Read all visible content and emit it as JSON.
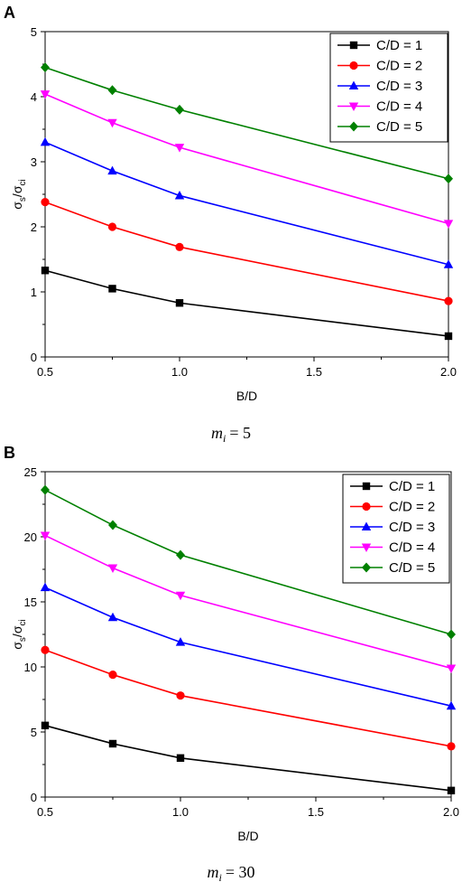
{
  "chart_data": [
    {
      "type": "line",
      "panel_label": "A",
      "caption": {
        "var": "m",
        "sub": "i",
        "value": "= 5"
      },
      "xlabel": "B/D",
      "ylabel": {
        "main": "σ",
        "sub1": "s",
        "slash": "/σ",
        "sub2": "ci"
      },
      "xlim": [
        0.5,
        2.0
      ],
      "ylim": [
        0,
        5
      ],
      "xticks": [
        "0.5",
        "1.0",
        "1.5",
        "2.0"
      ],
      "xtick_values": [
        0.5,
        1.0,
        1.5,
        2.0
      ],
      "yticks": [
        "0",
        "1",
        "2",
        "3",
        "4",
        "5"
      ],
      "ytick_values": [
        0,
        1,
        2,
        3,
        4,
        5
      ],
      "legend_position": "top-right",
      "grid": false,
      "x": [
        0.5,
        0.75,
        1.0,
        2.0
      ],
      "series": [
        {
          "name": "C/D = 1",
          "color": "#000000",
          "marker": "square",
          "values": [
            1.33,
            1.05,
            0.83,
            0.32
          ]
        },
        {
          "name": "C/D = 2",
          "color": "#ff0000",
          "marker": "circle",
          "values": [
            2.38,
            2.0,
            1.69,
            0.86
          ]
        },
        {
          "name": "C/D = 3",
          "color": "#0000ff",
          "marker": "triangle-up",
          "values": [
            3.3,
            2.86,
            2.48,
            1.42
          ]
        },
        {
          "name": "C/D = 4",
          "color": "#ff00ff",
          "marker": "triangle-down",
          "values": [
            4.04,
            3.6,
            3.22,
            2.05
          ]
        },
        {
          "name": "C/D = 5",
          "color": "#008000",
          "marker": "diamond",
          "values": [
            4.45,
            4.1,
            3.8,
            2.74
          ]
        }
      ]
    },
    {
      "type": "line",
      "panel_label": "B",
      "caption": {
        "var": "m",
        "sub": "i",
        "value": "= 30"
      },
      "xlabel": "B/D",
      "ylabel": {
        "main": "σ",
        "sub1": "s",
        "slash": "/σ",
        "sub2": "ci"
      },
      "xlim": [
        0.5,
        2.0
      ],
      "ylim": [
        0,
        25
      ],
      "xticks": [
        "0.5",
        "1.0",
        "1.5",
        "2.0"
      ],
      "xtick_values": [
        0.5,
        1.0,
        1.5,
        2.0
      ],
      "yticks": [
        "0",
        "5",
        "10",
        "15",
        "20",
        "25"
      ],
      "ytick_values": [
        0,
        5,
        10,
        15,
        20,
        25
      ],
      "legend_position": "top-right",
      "grid": false,
      "x": [
        0.5,
        0.75,
        1.0,
        2.0
      ],
      "series": [
        {
          "name": "C/D = 1",
          "color": "#000000",
          "marker": "square",
          "values": [
            5.5,
            4.1,
            3.0,
            0.5
          ]
        },
        {
          "name": "C/D = 2",
          "color": "#ff0000",
          "marker": "circle",
          "values": [
            11.3,
            9.4,
            7.8,
            3.9
          ]
        },
        {
          "name": "C/D = 3",
          "color": "#0000ff",
          "marker": "triangle-up",
          "values": [
            16.1,
            13.8,
            11.9,
            7.0
          ]
        },
        {
          "name": "C/D = 4",
          "color": "#ff00ff",
          "marker": "triangle-down",
          "values": [
            20.1,
            17.6,
            15.5,
            9.9
          ]
        },
        {
          "name": "C/D = 5",
          "color": "#008000",
          "marker": "diamond",
          "values": [
            23.6,
            20.9,
            18.6,
            12.5
          ]
        }
      ]
    }
  ]
}
